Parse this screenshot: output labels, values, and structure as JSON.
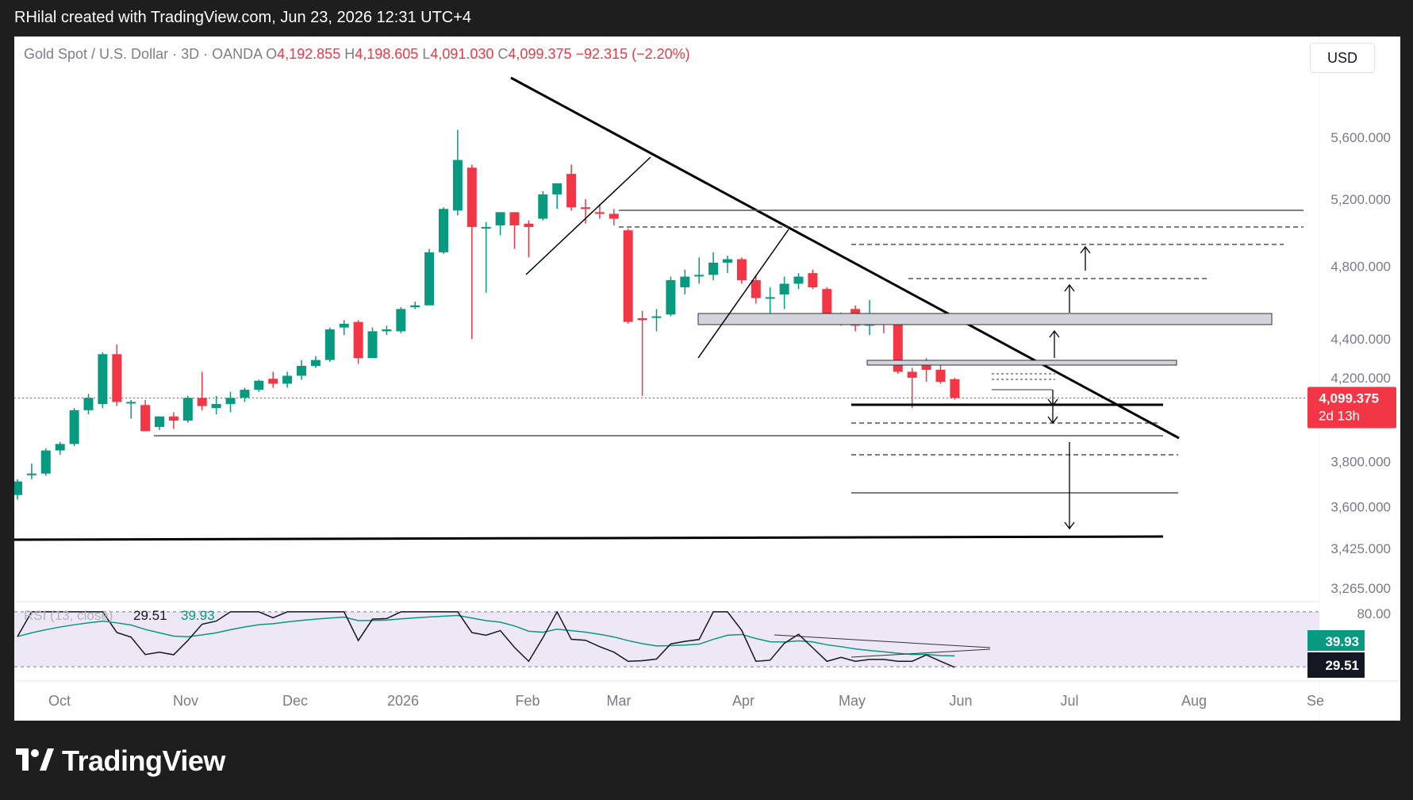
{
  "header": {
    "attribution": "RHilal created with TradingView.com, Jun 23, 2026 12:31 UTC+4"
  },
  "symbol": {
    "name": "Gold Spot / U.S. Dollar · 3D · OANDA",
    "o_label": "O",
    "o_value": "4,192.855",
    "h_label": "H",
    "h_value": "4,198.605",
    "l_label": "L",
    "l_value": "4,091.030",
    "c_label": "C",
    "c_value": "4,099.375",
    "change": "−92.315 (−2.20%)"
  },
  "currency_button": "USD",
  "footer": {
    "brand": "TradingView"
  },
  "chart_data": {
    "type": "candlestick",
    "price_axis": {
      "ticks": [
        "5,600.000",
        "5,200.000",
        "4,800.000",
        "4,400.000",
        "4,200.000",
        "3,800.000",
        "3,600.000",
        "3,425.000",
        "3,265.000"
      ],
      "tick_values": [
        5600,
        5200,
        4800,
        4400,
        4200,
        3800,
        3600,
        3425,
        3265
      ],
      "scale": "log",
      "range": [
        3250,
        5800
      ]
    },
    "current_price": {
      "label": "4,099.375",
      "countdown": "2d 13h",
      "value": 4099.375,
      "color": "#f23645"
    },
    "time_axis": [
      "Oct",
      "Nov",
      "Dec",
      "2026",
      "Feb",
      "Mar",
      "Apr",
      "May",
      "Jun",
      "Jul",
      "Aug",
      "Se"
    ],
    "colors": {
      "up": "#089981",
      "down": "#f23645"
    },
    "candles": [
      {
        "o": 3650,
        "h": 3720,
        "l": 3630,
        "c": 3710
      },
      {
        "o": 3740,
        "h": 3790,
        "l": 3720,
        "c": 3745
      },
      {
        "o": 3745,
        "h": 3860,
        "l": 3735,
        "c": 3850
      },
      {
        "o": 3850,
        "h": 3890,
        "l": 3830,
        "c": 3880
      },
      {
        "o": 3880,
        "h": 4050,
        "l": 3870,
        "c": 4040
      },
      {
        "o": 4040,
        "h": 4120,
        "l": 4020,
        "c": 4100
      },
      {
        "o": 4070,
        "h": 4330,
        "l": 4050,
        "c": 4320
      },
      {
        "o": 4320,
        "h": 4370,
        "l": 4060,
        "c": 4080
      },
      {
        "o": 4080,
        "h": 4090,
        "l": 4000,
        "c": 4080
      },
      {
        "o": 4065,
        "h": 4090,
        "l": 3940,
        "c": 3940
      },
      {
        "o": 3960,
        "h": 4010,
        "l": 3945,
        "c": 4010
      },
      {
        "o": 4010,
        "h": 4030,
        "l": 3950,
        "c": 3990
      },
      {
        "o": 3990,
        "h": 4110,
        "l": 3980,
        "c": 4100
      },
      {
        "o": 4100,
        "h": 4230,
        "l": 4040,
        "c": 4060
      },
      {
        "o": 4050,
        "h": 4110,
        "l": 4020,
        "c": 4070
      },
      {
        "o": 4070,
        "h": 4130,
        "l": 4030,
        "c": 4100
      },
      {
        "o": 4100,
        "h": 4150,
        "l": 4080,
        "c": 4140
      },
      {
        "o": 4140,
        "h": 4190,
        "l": 4130,
        "c": 4185
      },
      {
        "o": 4195,
        "h": 4230,
        "l": 4150,
        "c": 4170
      },
      {
        "o": 4170,
        "h": 4230,
        "l": 4150,
        "c": 4210
      },
      {
        "o": 4210,
        "h": 4290,
        "l": 4190,
        "c": 4260
      },
      {
        "o": 4260,
        "h": 4310,
        "l": 4250,
        "c": 4290
      },
      {
        "o": 4290,
        "h": 4460,
        "l": 4280,
        "c": 4450
      },
      {
        "o": 4460,
        "h": 4500,
        "l": 4420,
        "c": 4480
      },
      {
        "o": 4490,
        "h": 4500,
        "l": 4270,
        "c": 4300
      },
      {
        "o": 4300,
        "h": 4460,
        "l": 4300,
        "c": 4440
      },
      {
        "o": 4440,
        "h": 4470,
        "l": 4420,
        "c": 4450
      },
      {
        "o": 4440,
        "h": 4570,
        "l": 4430,
        "c": 4560
      },
      {
        "o": 4570,
        "h": 4600,
        "l": 4560,
        "c": 4580
      },
      {
        "o": 4580,
        "h": 4900,
        "l": 4580,
        "c": 4880
      },
      {
        "o": 4880,
        "h": 5150,
        "l": 4870,
        "c": 5140
      },
      {
        "o": 5130,
        "h": 5650,
        "l": 5100,
        "c": 5450
      },
      {
        "o": 5400,
        "h": 5420,
        "l": 4400,
        "c": 5030
      },
      {
        "o": 5030,
        "h": 5060,
        "l": 4650,
        "c": 5030
      },
      {
        "o": 5040,
        "h": 5120,
        "l": 4980,
        "c": 5120
      },
      {
        "o": 5120,
        "h": 5110,
        "l": 4900,
        "c": 5040
      },
      {
        "o": 5050,
        "h": 5070,
        "l": 4850,
        "c": 5030
      },
      {
        "o": 5080,
        "h": 5250,
        "l": 5070,
        "c": 5230
      },
      {
        "o": 5230,
        "h": 5300,
        "l": 5140,
        "c": 5300
      },
      {
        "o": 5360,
        "h": 5420,
        "l": 5130,
        "c": 5150
      },
      {
        "o": 5150,
        "h": 5200,
        "l": 5050,
        "c": 5145
      },
      {
        "o": 5120,
        "h": 5170,
        "l": 5080,
        "c": 5110
      },
      {
        "o": 5110,
        "h": 5140,
        "l": 5040,
        "c": 5080
      },
      {
        "o": 5010,
        "h": 5020,
        "l": 4480,
        "c": 4490
      },
      {
        "o": 4510,
        "h": 4550,
        "l": 4110,
        "c": 4500
      },
      {
        "o": 4520,
        "h": 4560,
        "l": 4440,
        "c": 4520
      },
      {
        "o": 4530,
        "h": 4740,
        "l": 4520,
        "c": 4720
      },
      {
        "o": 4680,
        "h": 4780,
        "l": 4640,
        "c": 4740
      },
      {
        "o": 4750,
        "h": 4850,
        "l": 4700,
        "c": 4750
      },
      {
        "o": 4750,
        "h": 4880,
        "l": 4720,
        "c": 4820
      },
      {
        "o": 4820,
        "h": 4860,
        "l": 4760,
        "c": 4840
      },
      {
        "o": 4840,
        "h": 4850,
        "l": 4700,
        "c": 4720
      },
      {
        "o": 4720,
        "h": 4750,
        "l": 4590,
        "c": 4620
      },
      {
        "o": 4620,
        "h": 4680,
        "l": 4530,
        "c": 4625
      },
      {
        "o": 4640,
        "h": 4740,
        "l": 4560,
        "c": 4700
      },
      {
        "o": 4700,
        "h": 4760,
        "l": 4670,
        "c": 4740
      },
      {
        "o": 4760,
        "h": 4780,
        "l": 4670,
        "c": 4680
      },
      {
        "o": 4670,
        "h": 4680,
        "l": 4490,
        "c": 4490
      },
      {
        "o": 4490,
        "h": 4540,
        "l": 4470,
        "c": 4510
      },
      {
        "o": 4560,
        "h": 4580,
        "l": 4440,
        "c": 4470
      },
      {
        "o": 4470,
        "h": 4610,
        "l": 4420,
        "c": 4480
      },
      {
        "o": 4490,
        "h": 4520,
        "l": 4430,
        "c": 4480
      },
      {
        "o": 4480,
        "h": 4490,
        "l": 4220,
        "c": 4230
      },
      {
        "o": 4230,
        "h": 4250,
        "l": 4050,
        "c": 4200
      },
      {
        "o": 4270,
        "h": 4300,
        "l": 4180,
        "c": 4240
      },
      {
        "o": 4240,
        "h": 4290,
        "l": 4170,
        "c": 4180
      },
      {
        "o": 4192.855,
        "h": 4198.605,
        "l": 4091.03,
        "c": 4099.375
      }
    ],
    "rsi": {
      "label": "RSI (13, close)",
      "value": 29.51,
      "value_label": "29.51",
      "ma": 39.93,
      "ma_label": "39.93",
      "levels": {
        "upper": 80,
        "upper_label": "80.00",
        "lower": 24.76
      },
      "colors": {
        "rsi": "#131722",
        "ma": "#089981",
        "band": "#ede7f6"
      }
    }
  }
}
